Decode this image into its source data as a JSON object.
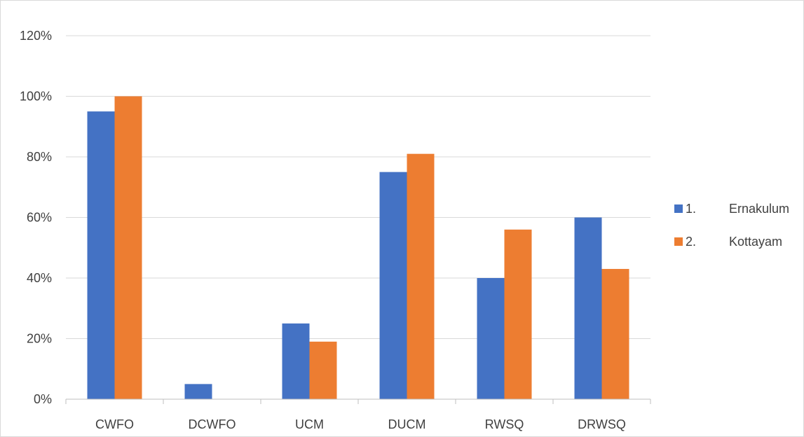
{
  "chart_data": {
    "type": "bar",
    "title": "",
    "xlabel": "",
    "ylabel": "",
    "categories": [
      "CWFO",
      "DCWFO",
      "UCM",
      "DUCM",
      "RWSQ",
      "DRWSQ"
    ],
    "series": [
      {
        "name": "1.      Ernakulum",
        "marker": "1.",
        "label": "Ernakulum",
        "color": "#4472c4",
        "values": [
          95,
          5,
          25,
          75,
          40,
          60
        ]
      },
      {
        "name": "2.      Kottayam",
        "marker": "2.",
        "label": "Kottayam",
        "color": "#ed7d31",
        "values": [
          100,
          0,
          19,
          81,
          56,
          43
        ]
      }
    ],
    "ylim": [
      0,
      120
    ],
    "yticks": [
      "0%",
      "20%",
      "40%",
      "60%",
      "80%",
      "100%",
      "120%"
    ],
    "grid": true,
    "legend_position": "right"
  }
}
